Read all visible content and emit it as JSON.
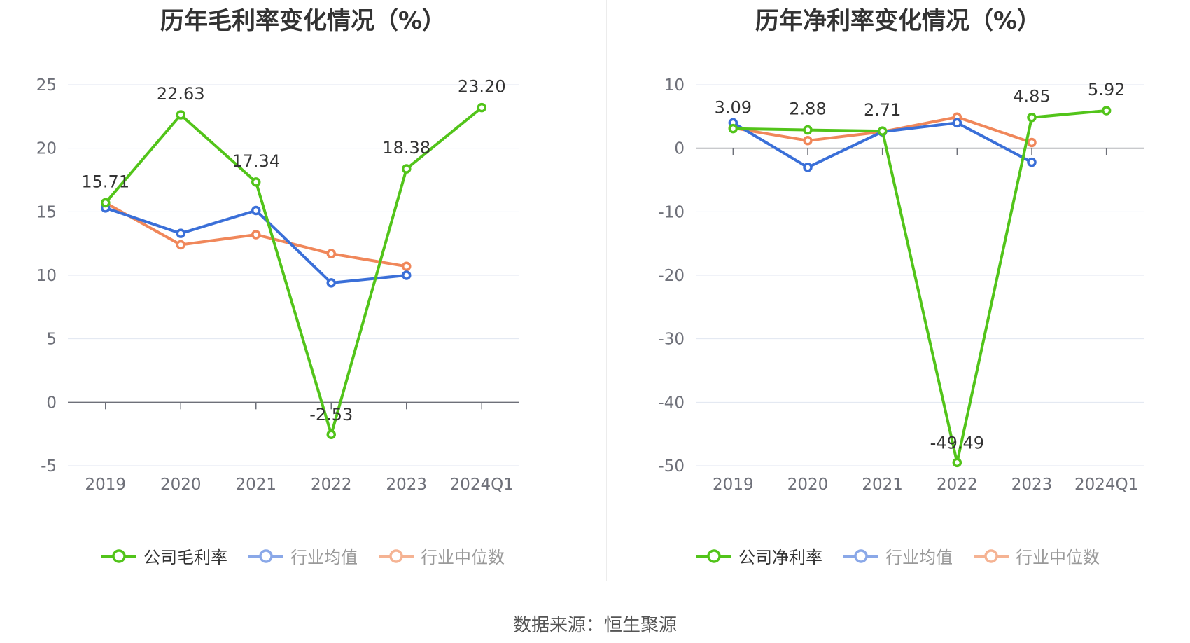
{
  "chart_data": [
    {
      "type": "line",
      "title": "历年毛利率变化情况（%）",
      "categories": [
        "2019",
        "2020",
        "2021",
        "2022",
        "2023",
        "2024Q1"
      ],
      "ylim": [
        -5,
        25
      ],
      "yticks": [
        "25",
        "20",
        "15",
        "10",
        "5",
        "0",
        "-5"
      ],
      "grid": true,
      "legend_position": "bottom-center",
      "series": [
        {
          "name": "公司毛利率",
          "color": "#52c41a",
          "values": [
            15.71,
            22.63,
            17.34,
            -2.53,
            18.38,
            23.2
          ],
          "labels": [
            "15.71",
            "22.63",
            "17.34",
            "-2.53",
            "18.38",
            "23.20"
          ]
        },
        {
          "name": "行业均值",
          "color": "#3a6fd8",
          "legend_color": "#8aa8e8",
          "values": [
            15.3,
            13.3,
            15.1,
            9.4,
            10.0,
            null
          ]
        },
        {
          "name": "行业中位数",
          "color": "#f0875a",
          "legend_color": "#f5b393",
          "values": [
            15.7,
            12.4,
            13.2,
            11.7,
            10.7,
            null
          ]
        }
      ]
    },
    {
      "type": "line",
      "title": "历年净利率变化情况（%）",
      "categories": [
        "2019",
        "2020",
        "2021",
        "2022",
        "2023",
        "2024Q1"
      ],
      "ylim": [
        -50,
        10
      ],
      "yticks": [
        "10",
        "0",
        "-10",
        "-20",
        "-30",
        "-40",
        "-50"
      ],
      "grid": true,
      "legend_position": "bottom-center",
      "series": [
        {
          "name": "公司净利率",
          "color": "#52c41a",
          "values": [
            3.09,
            2.88,
            2.71,
            -49.49,
            4.85,
            5.92
          ],
          "labels": [
            "3.09",
            "2.88",
            "2.71",
            "-49.49",
            "4.85",
            "5.92"
          ]
        },
        {
          "name": "行业均值",
          "color": "#3a6fd8",
          "legend_color": "#8aa8e8",
          "values": [
            4.0,
            -3.0,
            2.6,
            4.0,
            -2.2,
            null
          ]
        },
        {
          "name": "行业中位数",
          "color": "#f0875a",
          "legend_color": "#f5b393",
          "values": [
            3.2,
            1.2,
            2.6,
            4.9,
            0.9,
            null
          ]
        }
      ]
    }
  ],
  "source": "数据来源：恒生聚源"
}
